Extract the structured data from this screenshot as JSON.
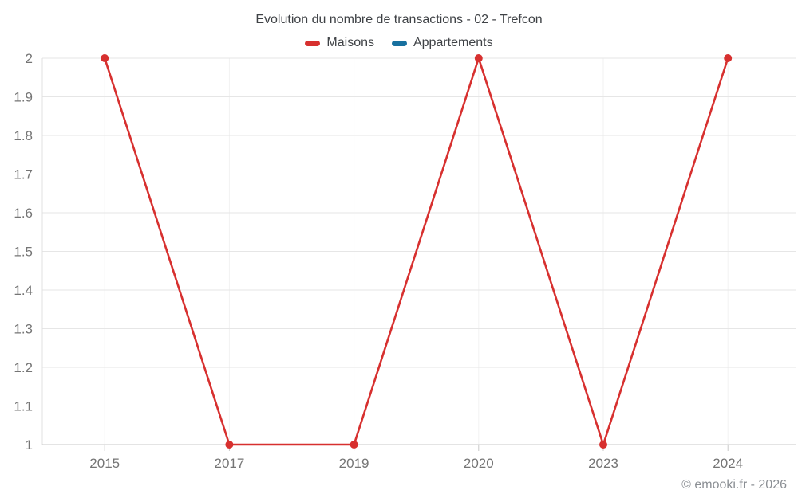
{
  "chart_data": {
    "type": "line",
    "title": "Evolution du nombre de transactions - 02 - Trefcon",
    "categories": [
      "2015",
      "2017",
      "2019",
      "2020",
      "2023",
      "2024"
    ],
    "series": [
      {
        "name": "Maisons",
        "color": "#d7302f",
        "values": [
          2,
          1,
          1,
          2,
          1,
          2
        ]
      },
      {
        "name": "Appartements",
        "color": "#17709f",
        "values": []
      }
    ],
    "xlabel": "",
    "ylabel": "",
    "ylim": [
      1,
      2
    ],
    "y_ticks": [
      "1",
      "1.1",
      "1.2",
      "1.3",
      "1.4",
      "1.5",
      "1.6",
      "1.7",
      "1.8",
      "1.9",
      "2"
    ],
    "grid": true,
    "legend_position": "top"
  },
  "watermark": "© emooki.fr - 2026",
  "colors": {
    "grid_horizontal": "#e6e6e6",
    "grid_vertical": "#f2f2f2",
    "axis_y_line": "#e0e0e0",
    "axis_x_line": "#c9c9c9",
    "tick": "#c9c9c9",
    "axis_label": "#757575"
  }
}
